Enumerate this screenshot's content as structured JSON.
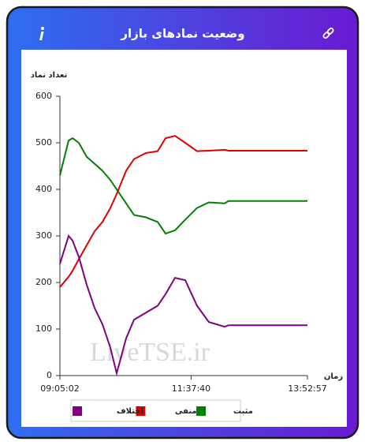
{
  "chart_data": {
    "type": "line",
    "title": "وضعیت نمادهای بازار",
    "y_label": "تعداد نماد",
    "x_label": "زمان",
    "watermark": "LiveTSE.ir",
    "x": [
      "09:05:02",
      "09:15:07",
      "09:19:42",
      "09:27:02",
      "09:36:12",
      "09:45:22",
      "09:54:32",
      "10:03:42",
      "10:11:02",
      "10:22:02",
      "10:31:12",
      "10:44:57",
      "10:58:42",
      "11:07:52",
      "11:18:52",
      "11:30:47",
      "11:44:32",
      "11:58:17",
      "12:16:37",
      "12:21:12",
      "13:52:57"
    ],
    "series": [
      {
        "name": "مثبت",
        "color": "#008000",
        "values": [
          430,
          505,
          510,
          500,
          470,
          455,
          440,
          420,
          400,
          370,
          345,
          340,
          330,
          305,
          312,
          335,
          360,
          372,
          370,
          375,
          375
        ]
      },
      {
        "name": "منفی",
        "color": "#e00000",
        "values": [
          190,
          212,
          225,
          250,
          280,
          310,
          330,
          360,
          390,
          440,
          465,
          478,
          482,
          510,
          515,
          500,
          482,
          483,
          485,
          483,
          483
        ]
      },
      {
        "name": "اختلاف",
        "color": "#800080",
        "values": [
          240,
          300,
          290,
          255,
          195,
          145,
          110,
          60,
          5,
          80,
          120,
          135,
          150,
          175,
          210,
          205,
          150,
          115,
          105,
          108,
          108
        ]
      }
    ],
    "xlim": [
      "09:05:02",
      "13:52:57"
    ],
    "xticks": [
      "09:05:02",
      "11:37:40",
      "13:52:57"
    ],
    "ylim": [
      0,
      600
    ],
    "yticks": [
      0,
      100,
      200,
      300,
      400,
      500,
      600
    ],
    "grid": false
  }
}
